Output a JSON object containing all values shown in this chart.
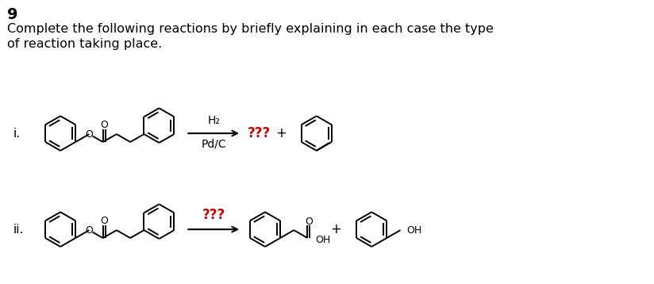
{
  "title_number": "9",
  "main_text_line1": "Complete the following reactions by briefly explaining in each case the type",
  "main_text_line2": "of reaction taking place.",
  "background_color": "#ffffff",
  "text_color": "#000000",
  "red_color": "#cc0000",
  "label_i": "i.",
  "label_ii": "ii.",
  "reagent_i_top": "H₂",
  "reagent_i_bot": "Pd/C",
  "qqq": "???",
  "plus": "+",
  "oh": "OH",
  "o_atom": "O",
  "fig_w": 8.24,
  "fig_h": 3.58,
  "dpi": 100
}
